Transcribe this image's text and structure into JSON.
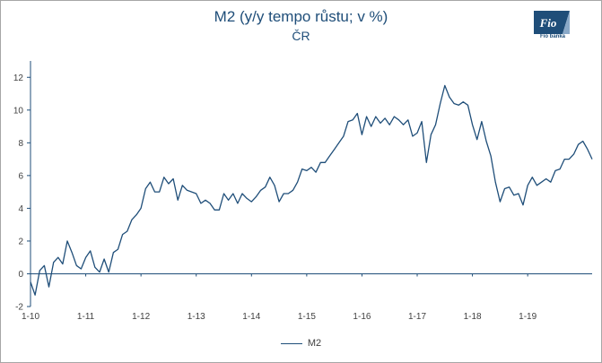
{
  "logo": {
    "word": "Fio",
    "caption": "Fio banka"
  },
  "colors": {
    "series": "#1f4e79",
    "axis": "#1f4e79",
    "text": "#404040"
  },
  "chart_data": {
    "type": "line",
    "title": "M2 (y/y tempo růstu; v %)",
    "subtitle": "ČR",
    "xlabel": "",
    "ylabel": "",
    "ylim": [
      -2,
      13
    ],
    "yticks": [
      -2,
      0,
      2,
      4,
      6,
      8,
      10,
      12
    ],
    "xticks": [
      "1-10",
      "1-11",
      "1-12",
      "1-13",
      "1-14",
      "1-15",
      "1-16",
      "1-17",
      "1-18",
      "1-19"
    ],
    "grid": false,
    "legend": "bottom",
    "series": [
      {
        "name": "M2",
        "values": [
          -0.5,
          -1.3,
          0.2,
          0.5,
          -0.8,
          0.7,
          1.0,
          0.6,
          2.0,
          1.3,
          0.5,
          0.3,
          1.0,
          1.4,
          0.4,
          0.1,
          0.9,
          0.1,
          1.3,
          1.5,
          2.4,
          2.6,
          3.3,
          3.6,
          4.0,
          5.2,
          5.6,
          5.0,
          5.0,
          5.9,
          5.5,
          5.8,
          4.5,
          5.4,
          5.1,
          5.0,
          4.9,
          4.3,
          4.5,
          4.3,
          3.9,
          3.9,
          4.9,
          4.5,
          4.9,
          4.3,
          4.9,
          4.6,
          4.4,
          4.7,
          5.1,
          5.3,
          5.9,
          5.4,
          4.4,
          4.9,
          4.9,
          5.1,
          5.6,
          6.4,
          6.3,
          6.5,
          6.2,
          6.8,
          6.8,
          7.2,
          7.6,
          8.0,
          8.4,
          9.3,
          9.4,
          9.8,
          8.5,
          9.6,
          9.0,
          9.6,
          9.2,
          9.5,
          9.1,
          9.6,
          9.4,
          9.1,
          9.4,
          8.4,
          8.6,
          9.3,
          6.8,
          8.5,
          9.1,
          10.4,
          11.5,
          10.8,
          10.4,
          10.3,
          10.5,
          10.3,
          9.1,
          8.2,
          9.3,
          8.1,
          7.2,
          5.6,
          4.4,
          5.2,
          5.3,
          4.8,
          4.9,
          4.2,
          5.4,
          5.9,
          5.4,
          5.6,
          5.8,
          5.6,
          6.3,
          6.4,
          7.0,
          7.0,
          7.3,
          7.9,
          8.1,
          7.6,
          7.0
        ]
      }
    ]
  }
}
